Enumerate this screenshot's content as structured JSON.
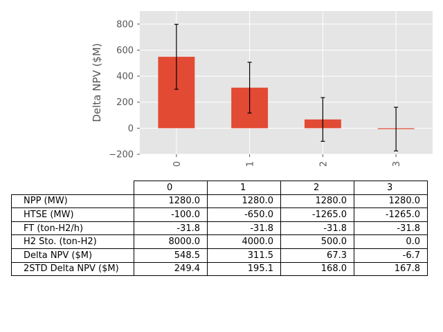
{
  "chart_data": {
    "type": "bar",
    "categories": [
      "0",
      "1",
      "2",
      "3"
    ],
    "values": [
      548.5,
      311.5,
      67.3,
      -6.7
    ],
    "error": [
      249.4,
      195.1,
      168.0,
      167.8
    ],
    "ylabel": "Delta NPV ($M)",
    "xlabel": "",
    "ylim": [
      -200,
      900
    ],
    "yticks": [
      -200,
      0,
      200,
      400,
      600,
      800
    ],
    "ytick_labels": [
      "−200",
      "0",
      "200",
      "400",
      "600",
      "800"
    ],
    "grid": true,
    "bar_color": "#E24A33",
    "background": "#E5E5E5",
    "table": {
      "col_headers": [
        "0",
        "1",
        "2",
        "3"
      ],
      "rows": [
        {
          "label": "NPP (MW)",
          "values": [
            "1280.0",
            "1280.0",
            "1280.0",
            "1280.0"
          ]
        },
        {
          "label": "HTSE (MW)",
          "values": [
            "-100.0",
            "-650.0",
            "-1265.0",
            "-1265.0"
          ]
        },
        {
          "label": "FT (ton-H2/h)",
          "values": [
            "-31.8",
            "-31.8",
            "-31.8",
            "-31.8"
          ]
        },
        {
          "label": "H2 Sto. (ton-H2)",
          "values": [
            "8000.0",
            "4000.0",
            "500.0",
            "0.0"
          ]
        },
        {
          "label": "Delta NPV ($M)",
          "values": [
            "548.5",
            "311.5",
            "67.3",
            "-6.7"
          ]
        },
        {
          "label": "2STD Delta NPV ($M)",
          "values": [
            "249.4",
            "195.1",
            "168.0",
            "167.8"
          ]
        }
      ]
    }
  }
}
